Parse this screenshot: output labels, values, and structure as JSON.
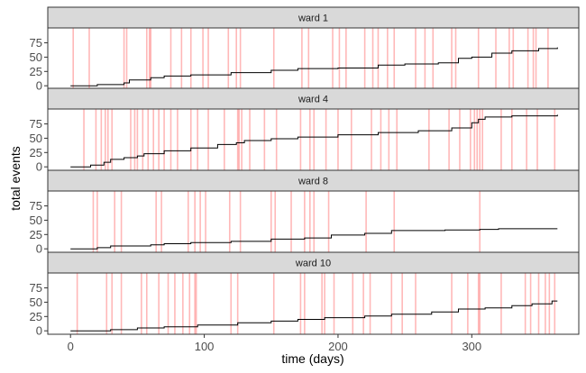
{
  "chart_data": {
    "type": "line",
    "xlabel": "time (days)",
    "ylabel": "total events",
    "xlim": [
      -17,
      380
    ],
    "ylim": [
      -6,
      101
    ],
    "x_ticks": [
      0,
      100,
      200,
      300
    ],
    "y_ticks": [
      0,
      25,
      50,
      75
    ],
    "grid": false,
    "colors": {
      "line": "#000000",
      "event": "#ff0000",
      "strip": "#d9d9d9",
      "border": "#333333"
    },
    "panels": [
      {
        "title": "ward 1",
        "line": [
          [
            0,
            0
          ],
          [
            20,
            2
          ],
          [
            40,
            5
          ],
          [
            44,
            10
          ],
          [
            60,
            14
          ],
          [
            70,
            17
          ],
          [
            90,
            19
          ],
          [
            120,
            23
          ],
          [
            150,
            27
          ],
          [
            170,
            30
          ],
          [
            200,
            31
          ],
          [
            230,
            36
          ],
          [
            250,
            38
          ],
          [
            275,
            40
          ],
          [
            290,
            48
          ],
          [
            300,
            50
          ],
          [
            315,
            57
          ],
          [
            330,
            61
          ],
          [
            350,
            65
          ],
          [
            364,
            67
          ]
        ],
        "events": [
          2,
          14,
          40,
          42,
          57,
          59,
          60,
          75,
          83,
          90,
          99,
          103,
          118,
          124,
          127,
          152,
          173,
          178,
          196,
          201,
          206,
          220,
          226,
          230,
          237,
          242,
          258,
          265,
          271,
          285,
          288,
          305,
          318,
          328,
          331,
          342,
          346,
          348,
          357
        ]
      },
      {
        "title": "ward 4",
        "line": [
          [
            0,
            0
          ],
          [
            15,
            3
          ],
          [
            25,
            8
          ],
          [
            30,
            13
          ],
          [
            40,
            16
          ],
          [
            50,
            19
          ],
          [
            55,
            23
          ],
          [
            70,
            28
          ],
          [
            90,
            33
          ],
          [
            110,
            39
          ],
          [
            124,
            42
          ],
          [
            130,
            46
          ],
          [
            150,
            49
          ],
          [
            170,
            52
          ],
          [
            200,
            56
          ],
          [
            230,
            60
          ],
          [
            260,
            63
          ],
          [
            285,
            68
          ],
          [
            300,
            77
          ],
          [
            305,
            83
          ],
          [
            310,
            87
          ],
          [
            330,
            89
          ],
          [
            364,
            91
          ]
        ],
        "events": [
          10,
          19,
          23,
          26,
          28,
          31,
          45,
          48,
          50,
          54,
          58,
          62,
          66,
          70,
          75,
          80,
          90,
          95,
          103,
          115,
          125,
          126,
          128,
          134,
          145,
          154,
          172,
          179,
          182,
          191,
          200,
          210,
          225,
          232,
          238,
          244,
          268,
          283,
          291,
          299,
          302,
          304,
          306,
          308,
          322,
          330,
          341,
          349,
          362
        ]
      },
      {
        "title": "ward 8",
        "line": [
          [
            0,
            0
          ],
          [
            20,
            2
          ],
          [
            30,
            5
          ],
          [
            60,
            7
          ],
          [
            70,
            9
          ],
          [
            90,
            11
          ],
          [
            120,
            13
          ],
          [
            150,
            17
          ],
          [
            175,
            19
          ],
          [
            195,
            24
          ],
          [
            220,
            27
          ],
          [
            240,
            32
          ],
          [
            280,
            33
          ],
          [
            306,
            34
          ],
          [
            320,
            35
          ],
          [
            364,
            35
          ]
        ],
        "events": [
          17,
          20,
          33,
          38,
          64,
          68,
          88,
          93,
          97,
          101,
          119,
          127,
          150,
          153,
          165,
          175,
          179,
          182,
          193,
          221,
          242,
          306
        ]
      },
      {
        "title": "ward 10",
        "line": [
          [
            0,
            0
          ],
          [
            30,
            2
          ],
          [
            50,
            5
          ],
          [
            70,
            7
          ],
          [
            95,
            10
          ],
          [
            125,
            14
          ],
          [
            150,
            17
          ],
          [
            170,
            20
          ],
          [
            190,
            23
          ],
          [
            220,
            26
          ],
          [
            240,
            29
          ],
          [
            270,
            33
          ],
          [
            290,
            38
          ],
          [
            310,
            40
          ],
          [
            330,
            44
          ],
          [
            345,
            47
          ],
          [
            360,
            52
          ],
          [
            364,
            52
          ]
        ],
        "events": [
          5,
          27,
          31,
          38,
          53,
          57,
          66,
          73,
          78,
          84,
          89,
          93,
          94,
          120,
          125,
          152,
          172,
          175,
          188,
          190,
          197,
          211,
          219,
          224,
          240,
          248,
          258,
          285,
          297,
          305,
          306,
          322,
          340,
          344,
          350,
          355,
          358,
          362
        ]
      }
    ]
  }
}
